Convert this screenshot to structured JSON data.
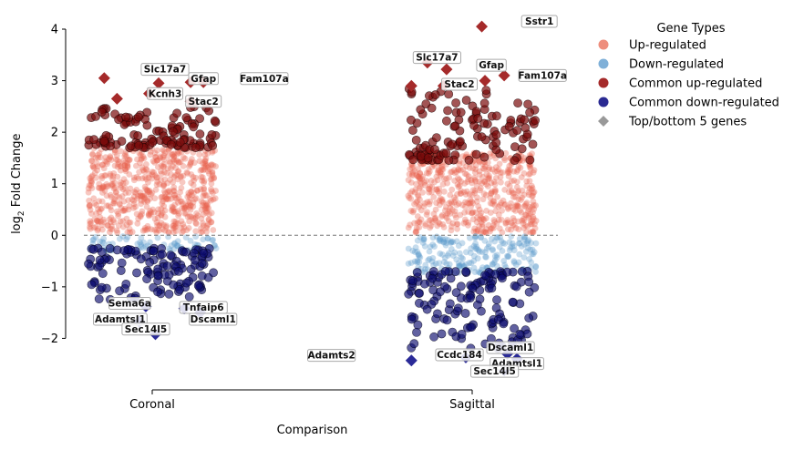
{
  "chart_data": {
    "type": "scatter",
    "subtype": "strip",
    "xlabel": "Comparison",
    "ylabel": "log",
    "ylabel_subscript": "2",
    "ylabel_suffix": " Fold Change",
    "categories": [
      "Coronal",
      "Sagittal"
    ],
    "ylim": [
      -3,
      4
    ],
    "yticks": [
      -2,
      -1,
      0,
      1,
      2,
      3,
      4
    ],
    "reference_line": {
      "y": 0,
      "style": "dashed",
      "color": "#777777"
    },
    "legend": {
      "title": "Gene Types",
      "placement": "outside-right",
      "entries": [
        {
          "label": "Up-regulated",
          "marker": "circle",
          "color": "#ee8e7d"
        },
        {
          "label": "Down-regulated",
          "marker": "circle",
          "color": "#7fb0d8"
        },
        {
          "label": "Common up-regulated",
          "marker": "circle",
          "color": "#a52a2a"
        },
        {
          "label": "Common down-regulated",
          "marker": "circle",
          "color": "#2a2a92"
        },
        {
          "label": "Top/bottom 5 genes",
          "marker": "diamond",
          "color": "#999999"
        }
      ]
    },
    "colors": {
      "up": "#e8604c",
      "down": "#5b9ccc",
      "common_up": "#7a0c0c",
      "common_down": "#0c0c6e",
      "top_up": "#a52a2a",
      "top_down": "#2a2a98"
    },
    "distribution": [
      {
        "category": "Coronal",
        "group": "Up-regulated",
        "y_range": [
          0.05,
          1.7
        ],
        "count": 620
      },
      {
        "category": "Coronal",
        "group": "Down-regulated",
        "y_range": [
          -0.3,
          -0.02
        ],
        "count": 70
      },
      {
        "category": "Coronal",
        "group": "Common up-regulated",
        "y_range": [
          1.7,
          2.5
        ],
        "count": 110
      },
      {
        "category": "Coronal",
        "group": "Common down-regulated",
        "y_range": [
          -1.25,
          -0.25
        ],
        "count": 120
      },
      {
        "category": "Sagittal",
        "group": "Up-regulated",
        "y_range": [
          0.05,
          1.6
        ],
        "count": 560
      },
      {
        "category": "Sagittal",
        "group": "Down-regulated",
        "y_range": [
          -0.75,
          -0.02
        ],
        "count": 210
      },
      {
        "category": "Sagittal",
        "group": "Common up-regulated",
        "y_range": [
          1.45,
          2.85
        ],
        "count": 120
      },
      {
        "category": "Sagittal",
        "group": "Common down-regulated",
        "y_range": [
          -2.2,
          -0.7
        ],
        "count": 140
      }
    ],
    "top_genes": [
      {
        "category": "Coronal",
        "gene": "",
        "y": 3.05,
        "dx": -0.15,
        "dir": "up"
      },
      {
        "category": "Coronal",
        "gene": "",
        "y": 2.65,
        "dx": -0.11,
        "dir": "up"
      },
      {
        "category": "Coronal",
        "gene": "Slc17a7",
        "y": 2.95,
        "dx": 0.02,
        "dir": "up",
        "label_dx": 0.02,
        "label_dy": 0.27
      },
      {
        "category": "Coronal",
        "gene": "Kcnh3",
        "y": 2.75,
        "dx": -0.01,
        "dir": "up",
        "label_dx": 0.05,
        "label_dy": 0.0
      },
      {
        "category": "Coronal",
        "gene": "Gfap",
        "y": 2.97,
        "dx": 0.12,
        "dir": "up",
        "label_dx": 0.04,
        "label_dy": 0.07
      },
      {
        "category": "Coronal",
        "gene": "Fam107a",
        "y": 2.97,
        "dx": 0.16,
        "dir": "up",
        "label_dx": 0.19,
        "label_dy": 0.07
      },
      {
        "category": "Coronal",
        "gene": "Stac2",
        "y": 2.6,
        "dx": 0.12,
        "dir": "up",
        "label_dx": 0.04,
        "label_dy": 0.0
      },
      {
        "category": "Coronal",
        "gene": "Sema6a",
        "y": -1.38,
        "dx": -0.02,
        "dir": "down",
        "label_dx": -0.05,
        "label_dy": 0.06
      },
      {
        "category": "Coronal",
        "gene": "Tnfaip6",
        "y": -1.42,
        "dx": 0.1,
        "dir": "down",
        "label_dx": 0.06,
        "label_dy": 0.02
      },
      {
        "category": "Coronal",
        "gene": "Adamtsl1",
        "y": -1.68,
        "dx": -0.04,
        "dir": "down",
        "label_dx": -0.06,
        "label_dy": 0.05
      },
      {
        "category": "Coronal",
        "gene": "Dscaml1",
        "y": -1.5,
        "dx": 0.15,
        "dir": "down",
        "label_dx": 0.04,
        "label_dy": -0.13
      },
      {
        "category": "Coronal",
        "gene": "Sec14l5",
        "y": -1.92,
        "dx": 0.01,
        "dir": "down",
        "label_dx": -0.03,
        "label_dy": 0.1
      },
      {
        "category": "Sagittal",
        "gene": "Sstr1",
        "y": 4.05,
        "dx": 0.03,
        "dir": "up",
        "label_dx": 0.18,
        "label_dy": 0.1
      },
      {
        "category": "Sagittal",
        "gene": "",
        "y": 2.9,
        "dx": -0.19,
        "dir": "up"
      },
      {
        "category": "Sagittal",
        "gene": "Slc17a7",
        "y": 3.35,
        "dx": -0.14,
        "dir": "up",
        "label_dx": 0.03,
        "label_dy": 0.1
      },
      {
        "category": "Sagittal",
        "gene": "",
        "y": 3.22,
        "dx": -0.08,
        "dir": "up"
      },
      {
        "category": "Sagittal",
        "gene": "Stac2",
        "y": 2.9,
        "dx": -0.09,
        "dir": "up",
        "label_dx": 0.05,
        "label_dy": 0.03
      },
      {
        "category": "Sagittal",
        "gene": "Gfap",
        "y": 3.0,
        "dx": 0.04,
        "dir": "up",
        "label_dx": 0.02,
        "label_dy": 0.3
      },
      {
        "category": "Sagittal",
        "gene": "Fam107a",
        "y": 3.1,
        "dx": 0.1,
        "dir": "up",
        "label_dx": 0.12,
        "label_dy": 0.0
      },
      {
        "category": "Sagittal",
        "gene": "Adamts2",
        "y": -2.43,
        "dx": -0.19,
        "dir": "down",
        "label_dx": -0.25,
        "label_dy": 0.1
      },
      {
        "category": "Sagittal",
        "gene": "Ccdc184",
        "y": -2.37,
        "dx": -0.02,
        "dir": "down",
        "label_dx": -0.02,
        "label_dy": 0.05
      },
      {
        "category": "Sagittal",
        "gene": "Dscaml1",
        "y": -2.3,
        "dx": 0.11,
        "dir": "down",
        "label_dx": 0.01,
        "label_dy": 0.12
      },
      {
        "category": "Sagittal",
        "gene": "Adamtsl1",
        "y": -2.4,
        "dx": 0.14,
        "dir": "down",
        "label_dx": 0.0,
        "label_dy": -0.09
      },
      {
        "category": "Sagittal",
        "gene": "Sec14l5",
        "y": -2.62,
        "dx": 0.1,
        "dir": "down",
        "label_dx": -0.03,
        "label_dy": -0.02
      }
    ]
  }
}
